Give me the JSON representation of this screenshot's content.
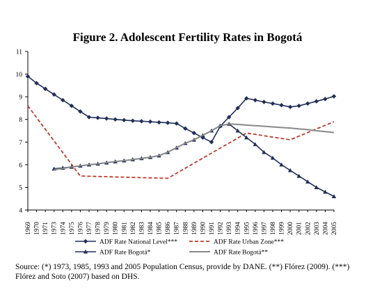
{
  "chart_data": {
    "type": "line",
    "title": "Figure 2. Adolescent Fertility Rates in Bogotá",
    "x": [
      "1969",
      "1970",
      "1971",
      "1973",
      "1974",
      "1975",
      "1976",
      "1977",
      "1978",
      "1979",
      "1980",
      "1981",
      "1982",
      "1983",
      "1984",
      "1985",
      "1986",
      "1987",
      "1988",
      "1989",
      "1990",
      "1991",
      "1992",
      "1993",
      "1994",
      "1995",
      "1996",
      "1997",
      "1998",
      "1999",
      "2000",
      "2001",
      "2002",
      "2003",
      "2004",
      "2005"
    ],
    "ylim": [
      4,
      11
    ],
    "yticks": [
      4,
      5,
      6,
      7,
      8,
      9,
      10,
      11
    ],
    "grid": false,
    "legend_position": "bottom",
    "series": [
      {
        "name": "ADF Rate National Level***",
        "color": "#1f2d57",
        "style": "solid-diamond",
        "values": [
          9.9,
          9.6,
          9.35,
          9.1,
          8.85,
          8.6,
          8.35,
          8.1,
          8.07,
          8.04,
          8.0,
          7.97,
          7.94,
          7.92,
          7.9,
          7.87,
          7.85,
          7.82,
          7.6,
          7.4,
          7.2,
          7.0,
          7.7,
          8.1,
          8.5,
          8.93,
          8.85,
          8.77,
          8.7,
          8.63,
          8.55,
          8.6,
          8.7,
          8.8,
          8.9,
          9.02
        ]
      },
      {
        "name": "ADF Rate Urban Zone***",
        "color": "#c0392b",
        "style": "dashed",
        "values": [
          8.6,
          null,
          null,
          null,
          null,
          null,
          5.5,
          null,
          null,
          null,
          null,
          null,
          null,
          null,
          null,
          null,
          5.4,
          null,
          null,
          null,
          null,
          null,
          null,
          null,
          null,
          7.4,
          null,
          null,
          null,
          null,
          7.1,
          null,
          null,
          null,
          null,
          7.9
        ]
      },
      {
        "name": "ADF Rate Bogotá*",
        "color": "#1f2d57",
        "style": "solid-triangle",
        "values": [
          null,
          null,
          null,
          5.82,
          5.86,
          5.9,
          5.95,
          6.0,
          6.04,
          6.09,
          6.14,
          6.18,
          6.23,
          6.28,
          6.33,
          6.4,
          6.55,
          6.75,
          6.95,
          7.1,
          7.3,
          7.5,
          7.72,
          7.8,
          7.5,
          7.2,
          6.9,
          6.55,
          6.3,
          6.0,
          5.75,
          5.5,
          5.25,
          5.0,
          4.8,
          4.6
        ]
      },
      {
        "name": "ADF Rate Bogotá**",
        "color": "#888888",
        "style": "solid",
        "values": [
          null,
          null,
          null,
          5.78,
          5.84,
          5.9,
          5.95,
          6.0,
          6.04,
          6.09,
          6.14,
          6.18,
          6.23,
          6.28,
          6.33,
          6.4,
          6.55,
          6.75,
          6.95,
          7.1,
          7.3,
          7.5,
          7.72,
          7.8,
          7.78,
          7.75,
          7.72,
          7.7,
          7.67,
          7.64,
          7.62,
          7.58,
          7.55,
          7.5,
          7.46,
          7.42
        ]
      }
    ]
  },
  "source_note": "Source: (*) 1973, 1985, 1993 and 2005 Population Census, provide by DANE. (**) Flórez (2009). (***) Flórez and Soto (2007) based on DHS."
}
